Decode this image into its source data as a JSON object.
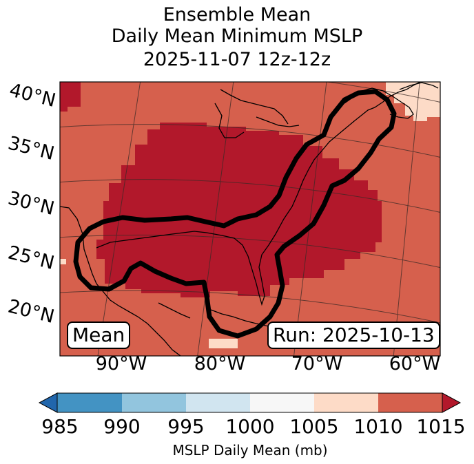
{
  "title": {
    "line1": "Ensemble Mean",
    "line2": "Daily Mean Minimum MSLP",
    "line3": "2025-11-07 12z-12z"
  },
  "map": {
    "lat_labels": [
      "40°N",
      "35°N",
      "30°N",
      "25°N",
      "20°N"
    ],
    "lon_labels": [
      "90°W",
      "80°W",
      "70°W",
      "60°W"
    ],
    "mean_label": "Mean",
    "run_label": "Run: 2025-10-13",
    "region_pressure_mb": {
      "gulf_and_southeast": "1015+",
      "atlantic_and_surroundings": "1010-1015",
      "far_northeast_corner": "1005-1010"
    }
  },
  "colorbar": {
    "label": "MSLP Daily Mean (mb)",
    "ticks": [
      "985",
      "990",
      "995",
      "1000",
      "1005",
      "1010",
      "1015"
    ],
    "colors": {
      "under": "#2166ac",
      "c985_990": "#4393c3",
      "c990_995": "#92c5de",
      "c995_1000": "#d1e5f0",
      "c1000_1005": "#f7f7f7",
      "c1005_1010": "#fddbc7",
      "c1010_1015": "#d6604d",
      "over": "#b2182b"
    }
  }
}
